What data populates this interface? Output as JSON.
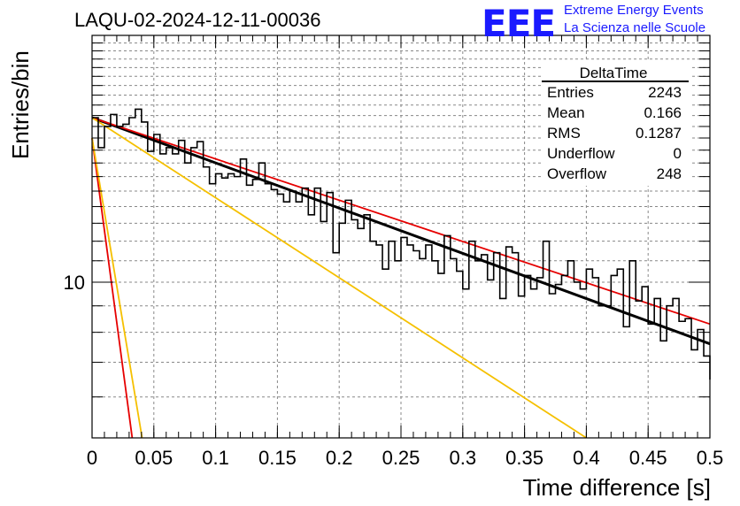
{
  "header": {
    "title": "LAQU-02-2024-12-11-00036",
    "logo_text": "EEE",
    "logo_line1": "Extreme Energy Events",
    "logo_line2": "La Scienza nelle Scuole"
  },
  "stats": {
    "name": "DeltaTime",
    "rows": [
      {
        "label": "Entries",
        "value": "2243"
      },
      {
        "label": "Mean",
        "value": "0.166"
      },
      {
        "label": "RMS",
        "value": "0.1287"
      },
      {
        "label": "Underflow",
        "value": "0"
      },
      {
        "label": "Overflow",
        "value": "248"
      }
    ]
  },
  "chart_data": {
    "type": "histogram",
    "xlabel": "Time difference [s]",
    "ylabel": "Entries/bin",
    "xlim": [
      0,
      0.5
    ],
    "ylim": [
      5,
      30
    ],
    "yscale": "log",
    "grid": true,
    "x_ticks": [
      "0",
      "0.05",
      "0.1",
      "0.15",
      "0.2",
      "0.25",
      "0.3",
      "0.35",
      "0.4",
      "0.45",
      "0.5"
    ],
    "y_ticks": [
      "10"
    ],
    "bin_width": 0.005,
    "histogram": [
      20.8,
      18.2,
      20.0,
      21.1,
      20.0,
      20.2,
      20.8,
      21.6,
      20.4,
      17.9,
      19.3,
      17.7,
      18.2,
      17.7,
      18.8,
      17.0,
      18.2,
      18.7,
      16.7,
      15.5,
      16.2,
      15.9,
      16.2,
      16.0,
      17.3,
      15.4,
      15.8,
      17.0,
      15.5,
      15.1,
      14.8,
      14.3,
      15.0,
      14.3,
      15.2,
      13.5,
      15.2,
      13.1,
      14.9,
      11.4,
      13.0,
      14.4,
      13.2,
      12.7,
      13.5,
      12.0,
      11.8,
      10.6,
      12.0,
      11.0,
      12.2,
      11.8,
      11.5,
      11.1,
      11.8,
      11.0,
      10.4,
      12.3,
      11.1,
      10.5,
      9.7,
      12.0,
      11.0,
      11.3,
      10.1,
      11.4,
      9.3,
      11.7,
      11.4,
      9.4,
      10.3,
      9.7,
      10.2,
      12.0,
      9.5,
      9.9,
      10.3,
      11.0,
      10.0,
      9.7,
      10.6,
      10.2,
      9.0,
      9.0,
      10.3,
      10.6,
      8.2,
      11.0,
      9.2,
      9.8,
      8.3,
      9.3,
      7.7,
      9.0,
      9.3,
      8.4,
      8.5,
      7.4,
      8.1,
      7.2
    ],
    "series": [
      {
        "x": [
          0,
          0.5
        ],
        "y": [
          20.8,
          7.6
        ],
        "color": "#000000"
      },
      {
        "x": [
          0,
          0.5
        ],
        "y": [
          20.8,
          8.3
        ],
        "color": "#e60000"
      },
      {
        "x": [
          0,
          0.4
        ],
        "y": [
          20.8,
          5.0
        ],
        "color": "#f5c000"
      },
      {
        "x": [
          0,
          0.0325
        ],
        "y": [
          19.0,
          5.0
        ],
        "color": "#e60000"
      },
      {
        "x": [
          0,
          0.0405
        ],
        "y": [
          19.0,
          5.0
        ],
        "color": "#f5c000"
      }
    ]
  }
}
